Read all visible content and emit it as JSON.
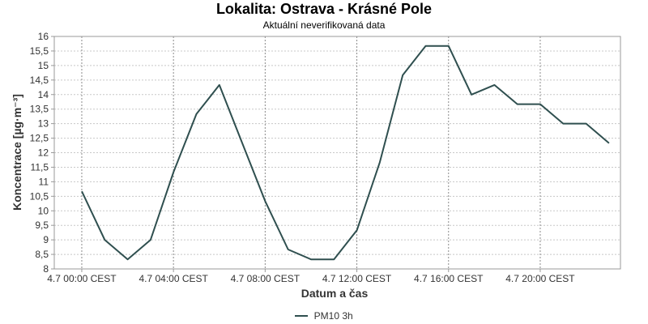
{
  "chart_data": {
    "type": "line",
    "title": "Lokalita: Ostrava - Krásné Pole",
    "subtitle": "Aktuální neverifikovaná data",
    "xlabel": "Datum a čas",
    "ylabel": "Koncentrace [µg·m⁻³]",
    "ylim": [
      8,
      16
    ],
    "y_ticks": [
      "8",
      "8,5",
      "9",
      "9,5",
      "10",
      "10,5",
      "11",
      "11,5",
      "12",
      "12,5",
      "13",
      "13,5",
      "14",
      "14,5",
      "15",
      "15,5",
      "16"
    ],
    "x_ticks": [
      {
        "x": 0,
        "label": "4.7 00:00 CEST"
      },
      {
        "x": 4,
        "label": "4.7 04:00 CEST"
      },
      {
        "x": 8,
        "label": "4.7 08:00 CEST"
      },
      {
        "x": 12,
        "label": "4.7 12:00 CEST"
      },
      {
        "x": 16,
        "label": "4.7 16:00 CEST"
      },
      {
        "x": 20,
        "label": "4.7 20:00 CEST"
      }
    ],
    "xlim": [
      -1.2,
      23.5
    ],
    "grid": true,
    "legend_position": "bottom",
    "series": [
      {
        "name": "PM10 3h",
        "color": "#2f4f4f",
        "x": [
          0,
          1,
          2,
          3,
          4,
          5,
          6,
          7,
          8,
          9,
          10,
          11,
          12,
          13,
          14,
          15,
          16,
          17,
          18,
          19,
          20,
          21,
          22,
          23
        ],
        "y": [
          10.67,
          9.0,
          8.33,
          9.0,
          11.33,
          13.33,
          14.33,
          12.33,
          10.33,
          8.67,
          8.33,
          8.33,
          9.33,
          11.67,
          14.67,
          15.67,
          15.67,
          14.0,
          14.33,
          13.67,
          13.67,
          13.0,
          13.0,
          12.33
        ]
      }
    ]
  }
}
